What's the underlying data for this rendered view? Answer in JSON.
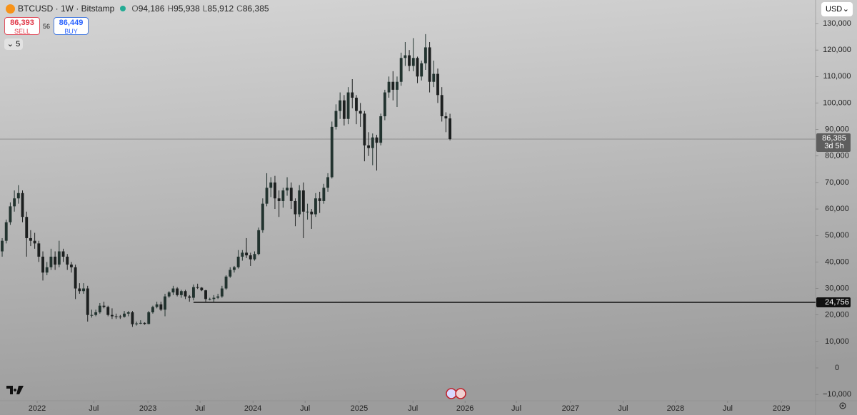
{
  "header": {
    "symbol": "BTCUSD · 1W · Bitstamp",
    "ohlc": [
      {
        "key": "O",
        "value": "94,186"
      },
      {
        "key": "H",
        "value": "95,938"
      },
      {
        "key": "L",
        "value": "85,912"
      },
      {
        "key": "C",
        "value": "86,385"
      }
    ]
  },
  "trade": {
    "sell_price": "86,393",
    "sell": "SELL",
    "spread": "56",
    "buy_price": "86,449",
    "buy": "BUY"
  },
  "indicators_count": "5",
  "currency": "USD",
  "chart_data": {
    "type": "candlestick",
    "up_color": "#22332f",
    "down_color": "#1c1f1f",
    "open": [
      44000,
      48000,
      55000,
      61000,
      64000,
      66000,
      57000,
      49000,
      48000,
      47000,
      42000,
      36000,
      38000,
      42000,
      39000,
      44000,
      42000,
      39000,
      38000,
      30000,
      29000,
      30000,
      20000,
      20000,
      21000,
      23500,
      23000,
      20000,
      19500,
      19400,
      19300,
      20500,
      21000,
      16500,
      16800,
      17000,
      16600,
      21000,
      23000,
      24000,
      22000,
      27000,
      28500,
      30000,
      27500,
      29000,
      27000,
      26500,
      30500,
      30300,
      29300,
      26000,
      26000,
      26500,
      27000,
      30000,
      34500,
      37000,
      38000,
      42000,
      43500,
      42500,
      41000,
      43000,
      52000,
      62000,
      68000,
      70000,
      64000,
      63000,
      67000,
      68000,
      63000,
      58000,
      67000,
      59000,
      59000,
      58000,
      64000,
      63000,
      68000,
      72000,
      91000,
      97000,
      101000,
      94000,
      104000,
      102000,
      97000,
      96000,
      84000,
      83000,
      87000,
      85000,
      95000,
      104000,
      108000,
      105000,
      108000,
      117000,
      118000,
      114000,
      117000,
      110000,
      115000,
      121000,
      108000,
      111000,
      103000,
      95000,
      94186
    ],
    "high": [
      49000,
      56000,
      62500,
      67000,
      69000,
      67000,
      59000,
      52000,
      51000,
      48000,
      44000,
      40000,
      45000,
      44000,
      48000,
      45000,
      43000,
      40000,
      39000,
      32000,
      32000,
      31000,
      22000,
      22000,
      24500,
      25000,
      23500,
      22500,
      20500,
      20000,
      21500,
      21500,
      21500,
      17500,
      18000,
      17200,
      21500,
      23500,
      25000,
      25000,
      28000,
      29000,
      31000,
      30500,
      29500,
      29500,
      27500,
      31500,
      31800,
      30500,
      29500,
      26500,
      27500,
      28000,
      31000,
      35000,
      38000,
      38500,
      44500,
      44500,
      49000,
      43500,
      44000,
      53000,
      64000,
      73500,
      72000,
      72500,
      67000,
      68000,
      72000,
      70000,
      64000,
      69000,
      70000,
      62000,
      60000,
      66000,
      66500,
      69500,
      73500,
      93000,
      99500,
      104000,
      103000,
      106000,
      109000,
      103000,
      100000,
      97000,
      89000,
      88500,
      88000,
      96000,
      105000,
      110000,
      112000,
      110000,
      119000,
      123000,
      120000,
      124500,
      117500,
      116000,
      126000,
      123000,
      116000,
      113000,
      106000,
      96500,
      95938
    ],
    "low": [
      42000,
      47000,
      54000,
      59000,
      62000,
      55000,
      42000,
      46000,
      45000,
      40000,
      33000,
      35000,
      37000,
      37000,
      38000,
      40000,
      37000,
      36000,
      26000,
      28000,
      28000,
      17500,
      19000,
      19500,
      20500,
      22500,
      19500,
      18500,
      18500,
      18500,
      19000,
      19500,
      15500,
      16000,
      16500,
      16300,
      16500,
      20500,
      22500,
      21500,
      19500,
      26500,
      27500,
      27000,
      26500,
      26000,
      25000,
      25500,
      29800,
      29000,
      25000,
      25500,
      25000,
      26000,
      26500,
      29500,
      34000,
      36000,
      37500,
      40500,
      41500,
      38500,
      40500,
      42500,
      51000,
      61000,
      64500,
      60000,
      57000,
      60500,
      65000,
      60000,
      53500,
      57000,
      49000,
      56000,
      52500,
      57000,
      58500,
      62000,
      66500,
      71500,
      90000,
      94000,
      91500,
      92000,
      98000,
      92000,
      91000,
      78000,
      80000,
      76500,
      74500,
      84000,
      93500,
      102000,
      101000,
      98500,
      106500,
      114000,
      112000,
      112000,
      107500,
      108500,
      112500,
      104000,
      106000,
      100000,
      93000,
      89000,
      85912
    ],
    "close": [
      48000,
      55000,
      61000,
      64000,
      66000,
      57000,
      49000,
      48000,
      47000,
      42000,
      36000,
      38000,
      42000,
      39000,
      44000,
      42000,
      39000,
      38000,
      30000,
      29000,
      30000,
      20000,
      20000,
      21000,
      23500,
      23000,
      20000,
      19500,
      19400,
      19300,
      20500,
      21000,
      16500,
      16800,
      17000,
      16600,
      21000,
      23000,
      24000,
      22000,
      27000,
      28500,
      30000,
      27500,
      29000,
      27000,
      26500,
      30500,
      30300,
      29300,
      26000,
      26000,
      26500,
      27000,
      30000,
      34500,
      37000,
      38000,
      42000,
      43500,
      42500,
      41000,
      43000,
      52000,
      62000,
      68000,
      70000,
      64000,
      63000,
      67000,
      68000,
      63000,
      58000,
      67000,
      59000,
      59000,
      58000,
      64000,
      63000,
      68000,
      72000,
      91000,
      97000,
      101000,
      94000,
      104000,
      102000,
      97000,
      96000,
      84000,
      83000,
      87000,
      85000,
      95000,
      104000,
      108000,
      105000,
      108000,
      117000,
      118000,
      114000,
      117000,
      110000,
      115000,
      121000,
      108000,
      111000,
      103000,
      95000,
      94186,
      86385
    ],
    "xlim": [
      -0.53,
      199.8
    ],
    "xticks": [
      {
        "value": 8.6,
        "label": "2022"
      },
      {
        "value": 22.5,
        "label": "Jul"
      },
      {
        "value": 35.8,
        "label": "2023"
      },
      {
        "value": 48.6,
        "label": "Jul"
      },
      {
        "value": 61.6,
        "label": "2024"
      },
      {
        "value": 74.4,
        "label": "Jul"
      },
      {
        "value": 87.7,
        "label": "2025"
      },
      {
        "value": 100.9,
        "label": "Jul"
      },
      {
        "value": 113.7,
        "label": "2026"
      },
      {
        "value": 126.3,
        "label": "Jul"
      },
      {
        "value": 139.6,
        "label": "2027"
      },
      {
        "value": 152.5,
        "label": "Jul"
      },
      {
        "value": 165.4,
        "label": "2028"
      },
      {
        "value": 178.2,
        "label": "Jul"
      },
      {
        "value": 191.4,
        "label": "2029"
      }
    ],
    "ylim": [
      -12380,
      138880
    ],
    "yticks": [
      {
        "value": -10000,
        "label": "−10,000"
      },
      0,
      {
        "value": 10000,
        "label": "10,000"
      },
      {
        "value": 20000,
        "label": "20,000"
      },
      {
        "value": 30000,
        "label": "30,000"
      },
      {
        "value": 40000,
        "label": "40,000"
      },
      {
        "value": 50000,
        "label": "50,000"
      },
      {
        "value": 60000,
        "label": "60,000"
      },
      {
        "value": 70000,
        "label": "70,000"
      },
      {
        "value": 80000,
        "label": "80,000"
      },
      {
        "value": 90000,
        "label": "90,000"
      },
      {
        "value": 100000,
        "label": "100,000"
      },
      {
        "value": 110000,
        "label": "110,000"
      },
      {
        "value": 120000,
        "label": "120,000"
      },
      {
        "value": 130000,
        "label": "130,000"
      }
    ],
    "price_line": {
      "value": 86385,
      "label": "86,385",
      "countdown": "3d 5h"
    },
    "hline": {
      "value": 24756,
      "label": "24,756",
      "x": 47
    }
  }
}
